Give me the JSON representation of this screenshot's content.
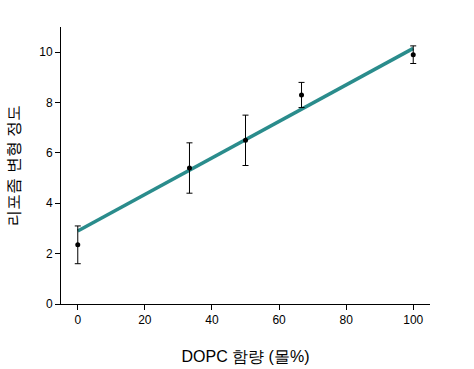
{
  "chart_data": {
    "type": "scatter",
    "x_label": "DOPC 함량 (몰%)",
    "y_label": "리포좀 변형 정도",
    "xlim": [
      -5,
      105
    ],
    "ylim": [
      0,
      11
    ],
    "xticks": [
      0,
      20,
      40,
      60,
      80,
      100
    ],
    "yticks": [
      0,
      2,
      4,
      6,
      8,
      10
    ],
    "grid": false,
    "series": [
      {
        "type": "scatter",
        "color": "#000000",
        "marker": "circle",
        "x": [
          0,
          33.3,
          50,
          66.7,
          100
        ],
        "values": [
          2.35,
          5.4,
          6.5,
          8.3,
          9.9
        ],
        "error": [
          0.75,
          1.0,
          1.0,
          0.5,
          0.35
        ]
      },
      {
        "type": "line",
        "color": "#2a8c8c",
        "line_style": "solid",
        "x": [
          0,
          100
        ],
        "values": [
          2.9,
          10.15
        ]
      }
    ]
  }
}
